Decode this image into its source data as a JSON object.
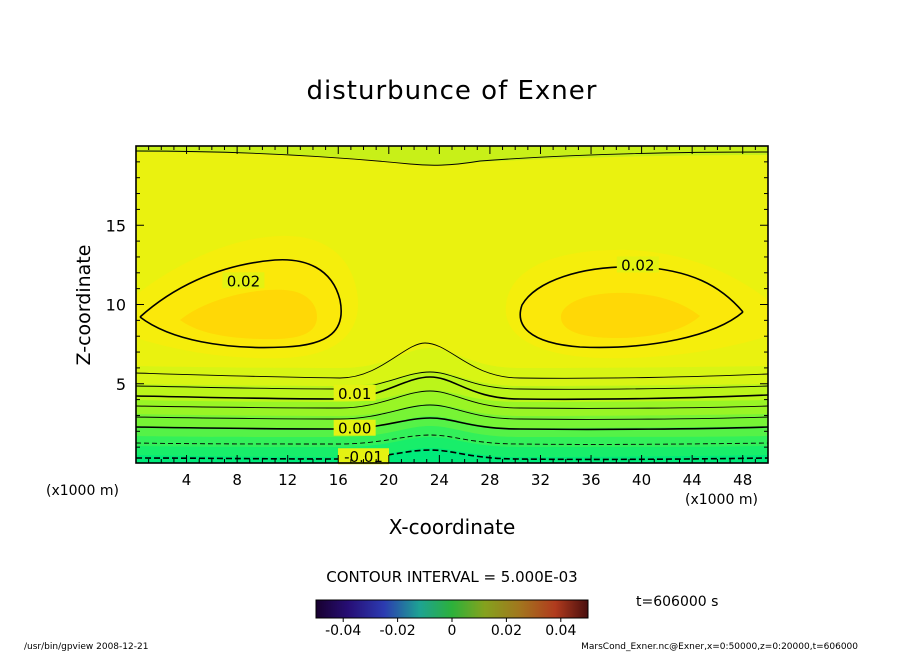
{
  "title": "disturbunce of Exner",
  "chart_data": {
    "type": "contour",
    "title": "disturbunce of Exner",
    "xlabel": "X-coordinate",
    "ylabel": "Z-coordinate",
    "x_unit_label": "(x1000 m)",
    "y_unit_label": "(x1000 m)",
    "xlim": [
      0,
      50
    ],
    "ylim": [
      0,
      20
    ],
    "x_ticks": [
      4,
      8,
      12,
      16,
      20,
      24,
      28,
      32,
      36,
      40,
      44,
      48
    ],
    "y_ticks": [
      5,
      10,
      15
    ],
    "contour_interval": 0.005,
    "contour_labels": [
      {
        "text": "0.02",
        "x": 8.5,
        "z": 11.4
      },
      {
        "text": "0.02",
        "x": 39.7,
        "z": 12.4
      },
      {
        "text": "0.01",
        "x": 17.3,
        "z": 4.3
      },
      {
        "text": "0.00",
        "x": 17.3,
        "z": 2.1
      },
      {
        "text": "-0.01",
        "x": 18.0,
        "z": 0.3
      }
    ],
    "colorbar": {
      "min": -0.05,
      "max": 0.05,
      "tick_labels": [
        "-0.04",
        "-0.02",
        "0",
        "0.02",
        "0.04"
      ],
      "tick_values": [
        -0.04,
        -0.02,
        0,
        0.02,
        0.04
      ]
    },
    "time_label": "t=606000 s"
  },
  "annotations": {
    "contour_interval_text": "CONTOUR INTERVAL = 5.000E-03",
    "footer_left": "/usr/bin/gpview   2008-12-21",
    "footer_right": "MarsCond_Exner.nc@Exner,x=0:50000,z=0:20000,t=606000"
  }
}
